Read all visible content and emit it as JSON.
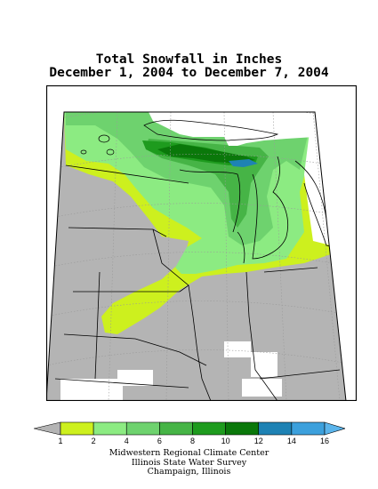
{
  "title": {
    "line1": "Total Snowfall in Inches",
    "line2": "December 1, 2004 to December 7, 2004"
  },
  "legend": {
    "ticks": [
      "1",
      "2",
      "4",
      "6",
      "8",
      "10",
      "12",
      "14",
      "16"
    ],
    "colors": {
      "below_1": "#b4b4b4",
      "1_2": "#cdf01e",
      "2_4": "#8ceb82",
      "4_6": "#6ed26e",
      "6_8": "#46b446",
      "8_10": "#1e9b1e",
      "10_12": "#0a780a",
      "12_14": "#1e82b4",
      "14_16": "#3ca0dc",
      "above_16": "#5ab4eb",
      "no_data": "#ffffff"
    }
  },
  "credits": {
    "line1": "Midwestern Regional Climate Center",
    "line2": "Illinois State Water Survey",
    "line3": "Champaign, Illinois"
  }
}
